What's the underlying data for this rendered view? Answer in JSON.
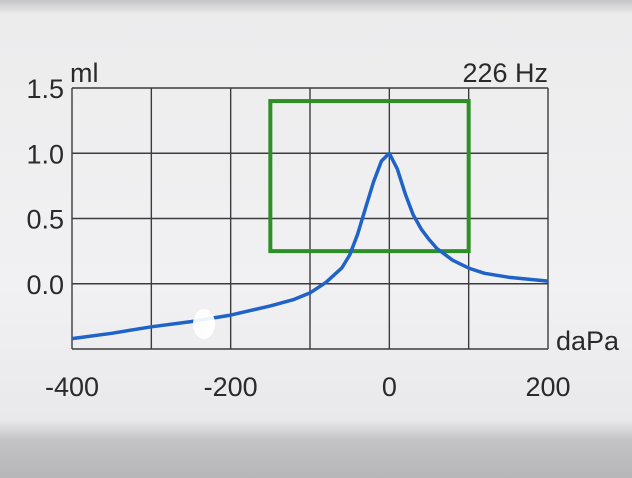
{
  "chart_data": {
    "type": "line",
    "frequency_label": "226 Hz",
    "ylabel": "ml",
    "xlabel": "daPa",
    "xlim": [
      -400,
      200
    ],
    "ylim": [
      -0.5,
      1.5
    ],
    "x_ticks": [
      "-400",
      "-200",
      "0",
      "200"
    ],
    "x_tick_values": [
      -400,
      -200,
      0,
      200
    ],
    "y_ticks": [
      "1.5",
      "1.0",
      "0.5",
      "0.0"
    ],
    "y_tick_values": [
      1.5,
      1.0,
      0.5,
      0.0
    ],
    "grid": true,
    "series": [
      {
        "color": "#1f63c9",
        "x": [
          -400,
          -350,
          -300,
          -250,
          -200,
          -150,
          -120,
          -100,
          -80,
          -60,
          -50,
          -40,
          -30,
          -20,
          -10,
          0,
          10,
          20,
          30,
          40,
          50,
          60,
          80,
          100,
          120,
          150,
          200
        ],
        "y": [
          -0.42,
          -0.38,
          -0.33,
          -0.29,
          -0.24,
          -0.17,
          -0.12,
          -0.07,
          0.01,
          0.12,
          0.22,
          0.38,
          0.58,
          0.78,
          0.94,
          1.0,
          0.88,
          0.69,
          0.53,
          0.42,
          0.34,
          0.27,
          0.18,
          0.12,
          0.08,
          0.05,
          0.02
        ]
      }
    ],
    "box": {
      "color": "#2f8f27",
      "x": [
        -150,
        100
      ],
      "y": [
        0.25,
        1.4
      ]
    }
  }
}
